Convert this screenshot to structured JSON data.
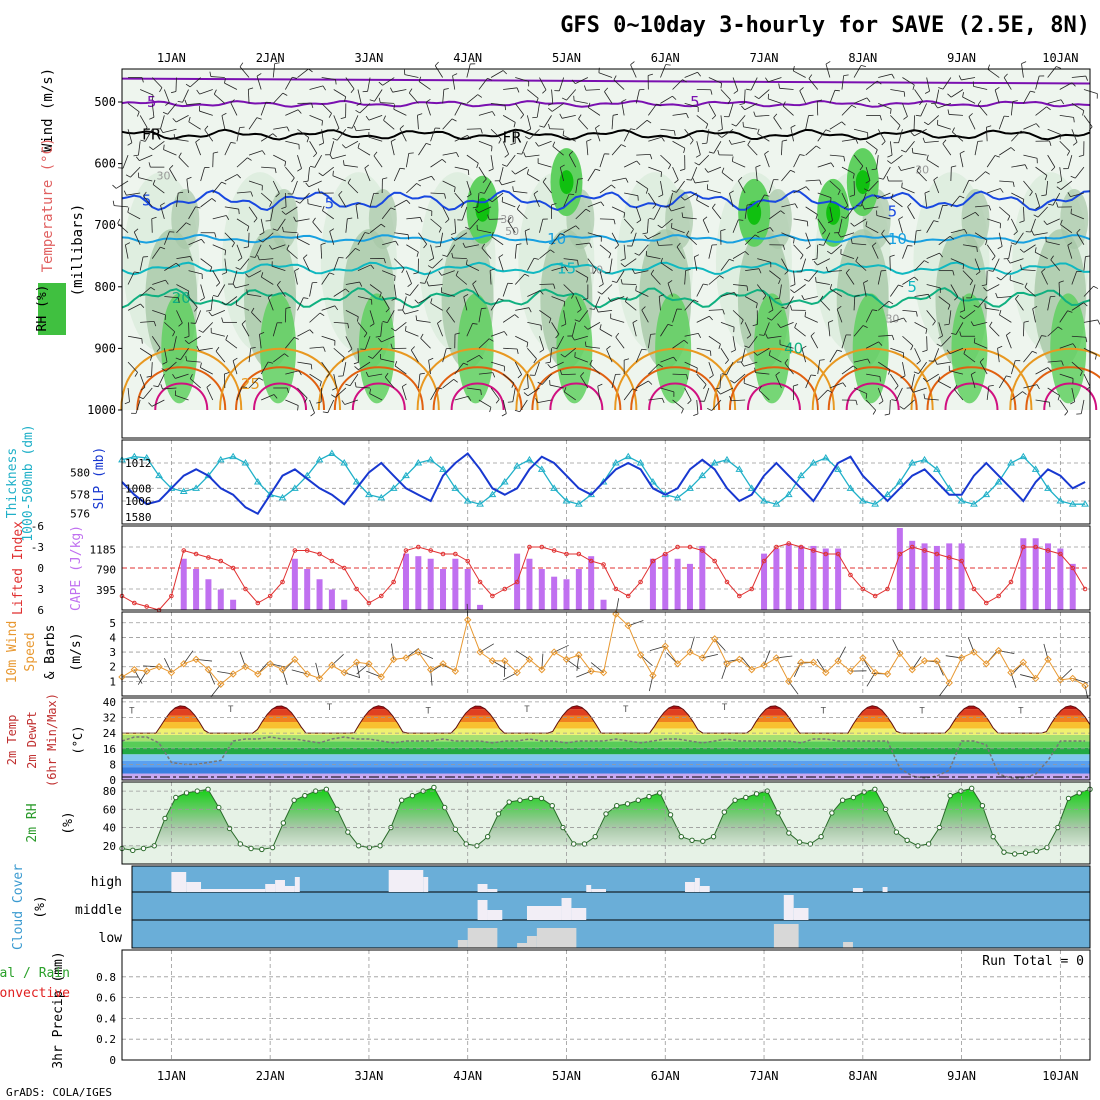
{
  "title": "GFS 0~10day 3-hourly for SAVE (2.5E, 8N)",
  "credit": "GrADS: COLA/IGES",
  "colors": {
    "temp500": "#7a10b0",
    "freezing": "#000000",
    "temp5": "#1848e0",
    "temp10": "#18a0e0",
    "temp15": "#10b8c0",
    "temp20": "#10b080",
    "temp25": "#e89820",
    "temp30": "#e06010",
    "temp35": "#d01080",
    "rh_light": "#dfeee0",
    "rh_mid": "#a8c8a8",
    "rh_high": "#60d060",
    "rh_top": "#10c010",
    "thickness": "#20b0c8",
    "slp": "#1838d0",
    "li": "#e03030",
    "cape": "#c070f0",
    "wind": "#e89830",
    "cloud_bg": "#6aaed8",
    "cloud_bar": "#f2eef6",
    "dewpt": "#777777"
  },
  "chart_data": {
    "time_axis": {
      "labels": [
        "1JAN",
        "2JAN",
        "3JAN",
        "4JAN",
        "5JAN",
        "6JAN",
        "7JAN",
        "8JAN",
        "9JAN",
        "10JAN"
      ],
      "start": -0.5,
      "end": 9.3,
      "step_hours": 3
    },
    "panels": [
      {
        "name": "upper-air",
        "type": "contour",
        "ylabel_rh": "RH (%)",
        "ylabel_temp": "Temperature (°C)",
        "ylabel_wind": "Wind (m/s)",
        "ylabel_units": "(millibars)",
        "ylim": [
          1000,
          450
        ],
        "yticks": [
          "500",
          "600",
          "700",
          "800",
          "900",
          "1000"
        ],
        "contour_labels": [
          "5",
          "5",
          "FR",
          "FR",
          "5",
          "5",
          "5",
          "10",
          "10",
          "15",
          "5",
          "20",
          "40",
          "30",
          "30",
          "25",
          "30",
          "50",
          "30",
          "10"
        ],
        "isolines": [
          {
            "name": "5 °C",
            "p": 503,
            "amp": 3
          },
          {
            "name": "0 °C (FR)",
            "p": 553,
            "amp": 5
          },
          {
            "name": "-5 °C",
            "p": 660,
            "amp": 10
          },
          {
            "name": "-10 °C",
            "p": 722,
            "amp": 4
          },
          {
            "name": "-15 °C",
            "p": 770,
            "amp": 6
          },
          {
            "name": "-20 °C",
            "p": 818,
            "amp": 10
          }
        ]
      },
      {
        "name": "thickness-slp",
        "type": "line",
        "ylabel_left": "Thickness 1000-500mb (dm)",
        "ylabel_right": "SLP (mb)",
        "yticks_left": [
          "580",
          "578",
          "576"
        ],
        "yticks_right": [
          "1012",
          "1008",
          "1006",
          "1580"
        ],
        "series": [
          {
            "name": "Thickness",
            "values": [
              1012.5,
              1013,
              1012.8,
              1010,
              1008,
              1007.5,
              1008,
              1010,
              1012.5,
              1013,
              1012,
              1009,
              1007,
              1006.5,
              1008,
              1010,
              1012.5,
              1013.5,
              1012,
              1009,
              1007,
              1006.5,
              1008,
              1010,
              1012,
              1012.5,
              1011,
              1008,
              1006,
              1005.5,
              1007,
              1009,
              1011.5,
              1012.5,
              1011,
              1008,
              1006,
              1005.5,
              1007,
              1009,
              1012,
              1013,
              1012,
              1009,
              1007,
              1006.5,
              1008,
              1010,
              1012,
              1012.5,
              1011,
              1008,
              1006,
              1005.5,
              1007,
              1010,
              1012,
              1012.8,
              1011,
              1008,
              1006,
              1005.5,
              1007,
              1009,
              1012,
              1012.5,
              1011,
              1008,
              1006,
              1005.5,
              1007,
              1009,
              1012,
              1013,
              1011,
              1008,
              1006,
              1005.5,
              1005.5
            ]
          },
          {
            "name": "SLP",
            "values": [
              1009,
              1007,
              1005.5,
              1006,
              1008,
              1010,
              1011,
              1010,
              1008,
              1007,
              1005,
              1004,
              1007,
              1010,
              1011,
              1009.5,
              1008,
              1007,
              1005.5,
              1008,
              1010.5,
              1012,
              1010,
              1008,
              1007,
              1006,
              1010,
              1012,
              1013.5,
              1011,
              1008,
              1007,
              1008,
              1011,
              1013,
              1012,
              1010,
              1008,
              1007,
              1009,
              1011,
              1012,
              1011,
              1008,
              1007,
              1008,
              1011,
              1012.5,
              1011,
              1008,
              1006,
              1007,
              1010,
              1012,
              1010,
              1008,
              1006,
              1009,
              1012,
              1013,
              1010,
              1008,
              1006,
              1008,
              1010,
              1011,
              1009,
              1007,
              1007,
              1010,
              1012,
              1010,
              1008,
              1006,
              1009,
              1011,
              1010,
              1008,
              1009
            ]
          }
        ]
      },
      {
        "name": "li-cape",
        "type": "bar+line",
        "ylabel_left": "Lifted Index",
        "ylabel_right": "CAPE (J/kg)",
        "yticks_left": [
          "-6",
          "-3",
          "0",
          "3",
          "6"
        ],
        "yticks_right": [
          "1185",
          "790",
          "395"
        ],
        "cape_values": [
          0,
          0,
          0,
          0,
          0,
          1000,
          800,
          600,
          400,
          200,
          0,
          0,
          0,
          0,
          1000,
          800,
          600,
          400,
          200,
          0,
          0,
          0,
          0,
          1100,
          1050,
          1000,
          800,
          1000,
          800,
          100,
          0,
          0,
          1100,
          1000,
          800,
          650,
          600,
          800,
          1050,
          200,
          0,
          0,
          0,
          1000,
          1100,
          1000,
          900,
          1250,
          0,
          0,
          0,
          0,
          1100,
          1200,
          1300,
          1250,
          1250,
          1200,
          1200,
          0,
          0,
          0,
          0,
          1600,
          1350,
          1300,
          1250,
          1300,
          1300,
          0,
          0,
          0,
          0,
          1400,
          1400,
          1300,
          1200,
          900,
          0
        ],
        "li_values": [
          4,
          5,
          5.5,
          6,
          4,
          -2.5,
          -2,
          -1.5,
          -1,
          0,
          3,
          5,
          4,
          2,
          -2.5,
          -2.5,
          -2,
          -1,
          0,
          3,
          5,
          4,
          2,
          -2.5,
          -3,
          -2.5,
          -2,
          -2,
          -1,
          2,
          4,
          3,
          2,
          -3,
          -3,
          -2.5,
          -2,
          -2,
          -1,
          -0.5,
          3,
          4,
          2,
          -1,
          -2,
          -3,
          -3,
          -2.5,
          -1,
          2,
          4,
          3,
          -1,
          -3,
          -3.5,
          -3,
          -2.5,
          -2,
          -2,
          1,
          3,
          4,
          3,
          -2,
          -3,
          -2.5,
          -2,
          -1.5,
          -1,
          3,
          5,
          4,
          2,
          -3,
          -3,
          -2.5,
          -2,
          0,
          3
        ]
      },
      {
        "name": "wind10m",
        "type": "line",
        "ylabel": "10m Wind Speed & Barbs (m/s)",
        "ylim": [
          0,
          5.5
        ],
        "yticks": [
          "1",
          "2",
          "3",
          "4",
          "5"
        ],
        "values": [
          1.3,
          1.8,
          1.7,
          2,
          1.6,
          2.2,
          2.5,
          1.8,
          0.8,
          1.5,
          2,
          1.5,
          2.2,
          1.8,
          2.5,
          1.5,
          1.2,
          2.1,
          1.6,
          2.3,
          2.2,
          1.3,
          2.5,
          2.6,
          3,
          1.8,
          2.2,
          1.7,
          5.2,
          3,
          2.4,
          2.4,
          1.6,
          2.5,
          1.8,
          3,
          2.5,
          2.8,
          1.7,
          1.6,
          5.6,
          4.8,
          2.8,
          1.4,
          3.4,
          2.2,
          3,
          2.6,
          3.9,
          2.2,
          2.5,
          1.8,
          2.1,
          2.6,
          1,
          2.3,
          2.3,
          1.6,
          2.4,
          1.7,
          2.6,
          1.6,
          1.5,
          2.9,
          1.8,
          2.4,
          2.4,
          0.9,
          2.6,
          3,
          2.2,
          3.1,
          1.6,
          2.3,
          1.2,
          2.5,
          1.1,
          1.2,
          0.7
        ]
      },
      {
        "name": "temp2m",
        "type": "area",
        "ylabel": "2m Temp 2m DewPt (6hr Min/Max) (°C)",
        "ylim": [
          0,
          40
        ],
        "yticks": [
          "0",
          "8",
          "16",
          "24",
          "32",
          "40"
        ],
        "tmax": [
          36,
          37,
          38,
          36,
          37,
          37,
          38,
          36,
          36,
          36,
          36,
          36
        ],
        "tmin": [
          24,
          24,
          24,
          24,
          24,
          24,
          24,
          24,
          24,
          24,
          24
        ],
        "dewpt_values": [
          20,
          22,
          22,
          19,
          9,
          8,
          8,
          9,
          10,
          20,
          21,
          21,
          22,
          21,
          21,
          20,
          19,
          21,
          22,
          21,
          21,
          20,
          19,
          20,
          20,
          20,
          21,
          20,
          20,
          20,
          19,
          20,
          20,
          21,
          20,
          20,
          19,
          20,
          20,
          20,
          21,
          20,
          19,
          20,
          21,
          21,
          20,
          19,
          20,
          21,
          20,
          20,
          20,
          20,
          20,
          19,
          21,
          21,
          20,
          20,
          20,
          20,
          20,
          6,
          2,
          1,
          2,
          5,
          20,
          20,
          18,
          3,
          1,
          1,
          3,
          10,
          20,
          20,
          20
        ]
      },
      {
        "name": "rh2m",
        "type": "area",
        "ylabel": "2m RH (%)",
        "ylim": [
          0,
          90
        ],
        "yticks": [
          "20",
          "40",
          "60",
          "80"
        ],
        "values": [
          17,
          15,
          17,
          20,
          50,
          73,
          78,
          80,
          82,
          62,
          39,
          22,
          17,
          16,
          18,
          45,
          70,
          75,
          80,
          82,
          60,
          35,
          20,
          18,
          20,
          40,
          70,
          75,
          80,
          84,
          62,
          38,
          22,
          20,
          30,
          55,
          68,
          70,
          72,
          72,
          64,
          40,
          22,
          22,
          30,
          55,
          64,
          66,
          70,
          74,
          78,
          54,
          30,
          26,
          25,
          30,
          57,
          70,
          73,
          77,
          80,
          56,
          34,
          24,
          22,
          30,
          56,
          70,
          73,
          79,
          82,
          60,
          35,
          26,
          20,
          22,
          40,
          75,
          80,
          83,
          64,
          30,
          13,
          11,
          12,
          14,
          18,
          40,
          72,
          78,
          82
        ]
      },
      {
        "name": "cloud-cover",
        "type": "bar",
        "ylabel": "Cloud Cover (%)",
        "levels": [
          "high",
          "middle",
          "low"
        ]
      },
      {
        "name": "precip",
        "type": "bar",
        "ylabel": "3hr Precip (mm)",
        "ylabel_total": "Total / Rain",
        "ylabel_conv": "Convective",
        "ylim": [
          0,
          1
        ],
        "yticks": [
          "0",
          "0.2",
          "0.4",
          "0.6",
          "0.8"
        ],
        "run_total": "Run Total = 0"
      }
    ]
  }
}
